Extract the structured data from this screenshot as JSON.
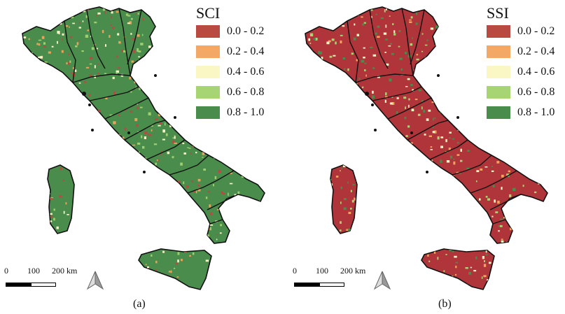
{
  "panels": [
    {
      "id": "a",
      "caption": "(a)",
      "legend_title": "SCI",
      "base_color": "#4a8c4c",
      "speckle_colors": [
        "#b94a42",
        "#e9a25a",
        "#f6f2c4",
        "#9fce6f"
      ],
      "legend": [
        {
          "label": "0.0 - 0.2",
          "color": "#b94a42"
        },
        {
          "label": "0.2 - 0.4",
          "color": "#f3a865"
        },
        {
          "label": "0.4 - 0.6",
          "color": "#fbf7c5"
        },
        {
          "label": "0.6 - 0.8",
          "color": "#a8d574"
        },
        {
          "label": "0.8 - 1.0",
          "color": "#4a8c4c"
        }
      ],
      "scale": {
        "ticks": [
          "0",
          "100",
          "200 km"
        ]
      }
    },
    {
      "id": "b",
      "caption": "(b)",
      "legend_title": "SSI",
      "base_color": "#b0353a",
      "speckle_colors": [
        "#f5a45c",
        "#fbf7c5",
        "#a8d574",
        "#4a8c4c"
      ],
      "legend": [
        {
          "label": "0.0 - 0.2",
          "color": "#b94a42"
        },
        {
          "label": "0.2 - 0.4",
          "color": "#f3a865"
        },
        {
          "label": "0.4 - 0.6",
          "color": "#fbf7c5"
        },
        {
          "label": "0.6 - 0.8",
          "color": "#a8d574"
        },
        {
          "label": "0.8 - 1.0",
          "color": "#4a8c4c"
        }
      ],
      "scale": {
        "ticks": [
          "0",
          "100",
          "200 km"
        ]
      }
    }
  ]
}
